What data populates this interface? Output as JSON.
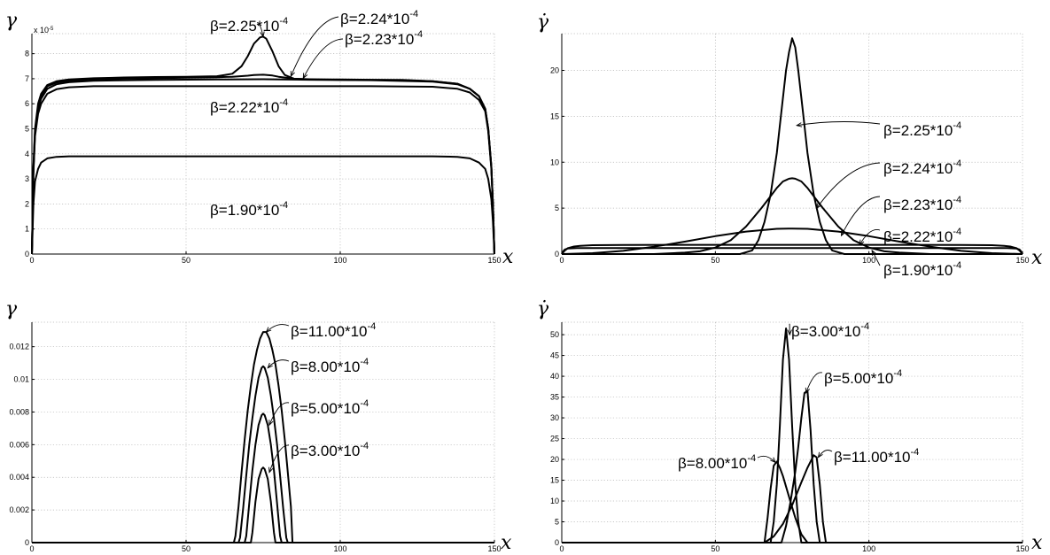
{
  "chart_data": [
    {
      "type": "line",
      "ylabel": "γ",
      "xlabel": "x",
      "y_exponent": "x 10",
      "y_exponent_power": "-5",
      "xlim": [
        0,
        150
      ],
      "ylim": [
        0,
        8.8
      ],
      "xticks": [
        0,
        50,
        100,
        150
      ],
      "yticks": [
        0,
        1,
        2,
        3,
        4,
        5,
        6,
        7,
        8
      ],
      "grid": true,
      "series": [
        {
          "name": "β=2.25*10",
          "power": "-4",
          "x": [
            0,
            0.5,
            1,
            2,
            3,
            5,
            8,
            12,
            20,
            30,
            40,
            50,
            60,
            65,
            68,
            70,
            72,
            74,
            75,
            76,
            78,
            80,
            82,
            85,
            90,
            100,
            110,
            120,
            130,
            138,
            142,
            145,
            147,
            148,
            149,
            149.5,
            150
          ],
          "y": [
            0,
            3.5,
            5.0,
            6.0,
            6.4,
            6.75,
            6.9,
            6.97,
            7.02,
            7.05,
            7.07,
            7.08,
            7.1,
            7.2,
            7.5,
            7.9,
            8.4,
            8.65,
            8.68,
            8.6,
            8.1,
            7.5,
            7.15,
            7.0,
            6.97,
            6.97,
            6.96,
            6.95,
            6.9,
            6.8,
            6.6,
            6.3,
            5.8,
            5.0,
            3.5,
            2.0,
            0
          ]
        },
        {
          "name": "β=2.24*10",
          "power": "-4",
          "x": [
            0,
            0.5,
            1,
            2,
            3,
            5,
            8,
            12,
            20,
            30,
            40,
            50,
            60,
            65,
            70,
            72,
            75,
            78,
            80,
            85,
            90,
            100,
            110,
            120,
            130,
            138,
            142,
            145,
            147,
            148,
            149,
            149.5,
            150
          ],
          "y": [
            0,
            3.4,
            4.9,
            5.9,
            6.3,
            6.7,
            6.85,
            6.92,
            6.98,
            7.0,
            7.02,
            7.04,
            7.06,
            7.08,
            7.12,
            7.15,
            7.16,
            7.13,
            7.08,
            7.0,
            6.98,
            6.96,
            6.95,
            6.94,
            6.9,
            6.8,
            6.6,
            6.3,
            5.8,
            5.0,
            3.5,
            2.0,
            0
          ]
        },
        {
          "name": "β=2.23*10",
          "power": "-4",
          "x": [
            0,
            0.5,
            1,
            2,
            3,
            5,
            8,
            12,
            20,
            40,
            60,
            75,
            90,
            110,
            130,
            138,
            142,
            145,
            147,
            148,
            149,
            149.5,
            150
          ],
          "y": [
            0,
            3.3,
            4.8,
            5.8,
            6.2,
            6.6,
            6.78,
            6.86,
            6.92,
            6.95,
            6.97,
            6.98,
            6.96,
            6.94,
            6.88,
            6.78,
            6.6,
            6.3,
            5.8,
            5.0,
            3.5,
            2.0,
            0
          ]
        },
        {
          "name": "β=2.22*10",
          "power": "-4",
          "x": [
            0,
            0.5,
            1,
            2,
            3,
            5,
            8,
            12,
            20,
            40,
            75,
            110,
            130,
            138,
            142,
            145,
            147,
            148,
            149,
            149.5,
            150
          ],
          "y": [
            0,
            3.2,
            4.7,
            5.6,
            6.0,
            6.4,
            6.58,
            6.66,
            6.7,
            6.7,
            6.7,
            6.7,
            6.68,
            6.6,
            6.45,
            6.15,
            5.7,
            4.9,
            3.4,
            1.9,
            0
          ]
        },
        {
          "name": "β=1.90*10",
          "power": "-4",
          "x": [
            0,
            0.5,
            1,
            2,
            3,
            5,
            8,
            12,
            20,
            40,
            75,
            110,
            130,
            138,
            142,
            145,
            147,
            148,
            149,
            149.5,
            150
          ],
          "y": [
            0,
            2.0,
            2.9,
            3.4,
            3.65,
            3.82,
            3.88,
            3.9,
            3.9,
            3.9,
            3.9,
            3.9,
            3.9,
            3.88,
            3.82,
            3.65,
            3.4,
            3.0,
            2.2,
            1.3,
            0
          ]
        }
      ]
    },
    {
      "type": "line",
      "ylabel": "γ̇",
      "xlabel": "x",
      "xlim": [
        0,
        150
      ],
      "ylim": [
        0,
        24
      ],
      "xticks": [
        0,
        50,
        100,
        150
      ],
      "yticks": [
        0,
        5,
        10,
        15,
        20
      ],
      "grid": true,
      "series": [
        {
          "name": "β=2.25*10",
          "power": "-4",
          "x": [
            0,
            58,
            62,
            64,
            66,
            68,
            70,
            71,
            72,
            73,
            74,
            75,
            76,
            77,
            78,
            79,
            80,
            82,
            84,
            86,
            88,
            92,
            150
          ],
          "y": [
            0,
            0,
            0.4,
            1.5,
            3.5,
            6.5,
            11,
            14,
            17,
            20,
            22,
            23.5,
            22.5,
            20,
            17,
            14,
            11,
            6.5,
            3.5,
            1.5,
            0.4,
            0,
            0
          ]
        },
        {
          "name": "β=2.24*10",
          "power": "-4",
          "x": [
            0,
            30,
            40,
            45,
            50,
            55,
            60,
            65,
            68,
            70,
            72,
            74,
            75,
            76,
            78,
            80,
            82,
            85,
            90,
            95,
            100,
            105,
            110,
            120,
            150
          ],
          "y": [
            0,
            0,
            0.15,
            0.3,
            0.7,
            1.5,
            3.0,
            5.0,
            6.3,
            7.2,
            7.9,
            8.2,
            8.25,
            8.2,
            7.9,
            7.2,
            6.3,
            5.0,
            3.0,
            1.5,
            0.7,
            0.3,
            0.15,
            0,
            0
          ]
        },
        {
          "name": "β=2.23*10",
          "power": "-4",
          "x": [
            0,
            10,
            20,
            30,
            40,
            50,
            60,
            70,
            75,
            80,
            90,
            100,
            110,
            120,
            130,
            140,
            150
          ],
          "y": [
            0,
            0.1,
            0.35,
            0.8,
            1.35,
            1.95,
            2.45,
            2.75,
            2.78,
            2.75,
            2.45,
            1.95,
            1.35,
            0.8,
            0.35,
            0.1,
            0
          ]
        },
        {
          "name": "β=2.22*10",
          "power": "-4",
          "x": [
            0,
            1,
            2,
            4,
            6,
            10,
            20,
            40,
            75,
            110,
            130,
            140,
            144,
            146,
            148,
            149,
            150
          ],
          "y": [
            0,
            0.4,
            0.65,
            0.82,
            0.9,
            0.96,
            0.99,
            1.0,
            1.0,
            1.0,
            0.99,
            0.96,
            0.9,
            0.82,
            0.65,
            0.4,
            0
          ]
        },
        {
          "name": "β=1.90*10",
          "power": "-4",
          "x": [
            0,
            0.5,
            1,
            2,
            5,
            10,
            40,
            75,
            110,
            140,
            145,
            148,
            149,
            149.5,
            150
          ],
          "y": [
            0,
            0.3,
            0.5,
            0.6,
            0.65,
            0.66,
            0.66,
            0.66,
            0.66,
            0.66,
            0.65,
            0.6,
            0.5,
            0.3,
            0
          ]
        }
      ]
    },
    {
      "type": "line",
      "ylabel": "γ",
      "xlabel": "x",
      "xlim": [
        0,
        150
      ],
      "ylim": [
        0,
        0.0135
      ],
      "xticks": [
        0,
        50,
        100,
        150
      ],
      "yticks": [
        0,
        0.002,
        0.004,
        0.006,
        0.008,
        0.01,
        0.012
      ],
      "ytick_labels": [
        "0",
        "0.002",
        "0.004",
        "0.006",
        "0.008",
        "0.01",
        "0.012"
      ],
      "grid": true,
      "series": [
        {
          "name": "β=11.00*10",
          "power": "-4",
          "x": [
            0,
            65.5,
            66,
            67,
            68,
            69,
            70,
            71,
            72,
            73,
            74,
            75,
            76,
            77,
            78,
            79,
            80,
            81,
            82,
            83,
            84,
            84.5,
            150
          ],
          "y": [
            0,
            0,
            0.0004,
            0.0022,
            0.0043,
            0.0063,
            0.0081,
            0.0096,
            0.0109,
            0.0118,
            0.0125,
            0.0129,
            0.0129,
            0.0125,
            0.0118,
            0.0109,
            0.0096,
            0.0081,
            0.0063,
            0.0043,
            0.0022,
            0,
            0
          ]
        },
        {
          "name": "β=8.00*10",
          "power": "-4",
          "x": [
            0,
            67,
            67.5,
            68.5,
            69.5,
            70.5,
            71.5,
            72.5,
            73.5,
            74.5,
            75,
            75.5,
            76.5,
            77.5,
            78.5,
            79.5,
            80.5,
            81.5,
            82.5,
            83,
            150
          ],
          "y": [
            0,
            0,
            0.0003,
            0.0021,
            0.0041,
            0.006,
            0.0076,
            0.009,
            0.0101,
            0.0107,
            0.0108,
            0.0107,
            0.0101,
            0.009,
            0.0076,
            0.006,
            0.0041,
            0.0021,
            0.0003,
            0,
            0
          ]
        },
        {
          "name": "β=5.00*10",
          "power": "-4",
          "x": [
            0,
            69,
            69.5,
            70.5,
            71.5,
            72.5,
            73.5,
            74.5,
            75,
            75.5,
            76.5,
            77.5,
            78.5,
            79.5,
            80.5,
            81,
            150
          ],
          "y": [
            0,
            0,
            0.0004,
            0.0024,
            0.0044,
            0.006,
            0.0072,
            0.0078,
            0.0079,
            0.0078,
            0.0072,
            0.006,
            0.0044,
            0.0024,
            0.0004,
            0,
            0
          ]
        },
        {
          "name": "β=3.00*10",
          "power": "-4",
          "x": [
            0,
            71,
            71.5,
            72.5,
            73.5,
            74.5,
            75,
            75.5,
            76.5,
            77.5,
            78.5,
            79,
            150
          ],
          "y": [
            0,
            0,
            0.0006,
            0.0025,
            0.0039,
            0.0045,
            0.0046,
            0.0045,
            0.0039,
            0.0025,
            0.0006,
            0,
            0
          ]
        }
      ]
    },
    {
      "type": "line",
      "ylabel": "γ̇",
      "xlabel": "x",
      "xlim": [
        0,
        150
      ],
      "ylim": [
        0,
        53
      ],
      "xticks": [
        0,
        50,
        100,
        150
      ],
      "yticks": [
        0,
        5,
        10,
        15,
        20,
        25,
        30,
        35,
        40,
        45,
        50
      ],
      "grid": true,
      "series": [
        {
          "name": "β=3.00*10",
          "power": "-4",
          "x": [
            0,
            68,
            69,
            70,
            71,
            72,
            73,
            74,
            75,
            76,
            77,
            78,
            150
          ],
          "y": [
            0,
            0,
            5,
            14,
            28,
            44,
            51.5,
            44,
            28,
            14,
            5,
            0,
            0
          ]
        },
        {
          "name": "β=5.00*10",
          "power": "-4",
          "x": [
            0,
            71.5,
            73,
            74.5,
            76,
            77,
            78,
            79,
            80,
            81,
            82,
            83,
            84,
            150
          ],
          "y": [
            0,
            0,
            4,
            10,
            17,
            23,
            30,
            36,
            36.5,
            27,
            14,
            5,
            0,
            0
          ]
        },
        {
          "name": "β=11.00*10",
          "power": "-4",
          "x": [
            0,
            66,
            69,
            72,
            75,
            78,
            80,
            81,
            82,
            83,
            84,
            85,
            86,
            150
          ],
          "y": [
            0,
            0,
            1.5,
            4.5,
            9,
            14.5,
            18,
            19.5,
            21,
            20.5,
            14,
            5,
            0,
            0
          ]
        },
        {
          "name": "β=8.00*10",
          "power": "-4",
          "x": [
            0,
            66,
            67,
            68,
            69,
            70,
            71,
            72,
            74,
            76,
            78,
            80,
            150
          ],
          "y": [
            0,
            0,
            6,
            13,
            18.5,
            19.5,
            18,
            16,
            11,
            6,
            2,
            0,
            0
          ]
        }
      ]
    }
  ]
}
